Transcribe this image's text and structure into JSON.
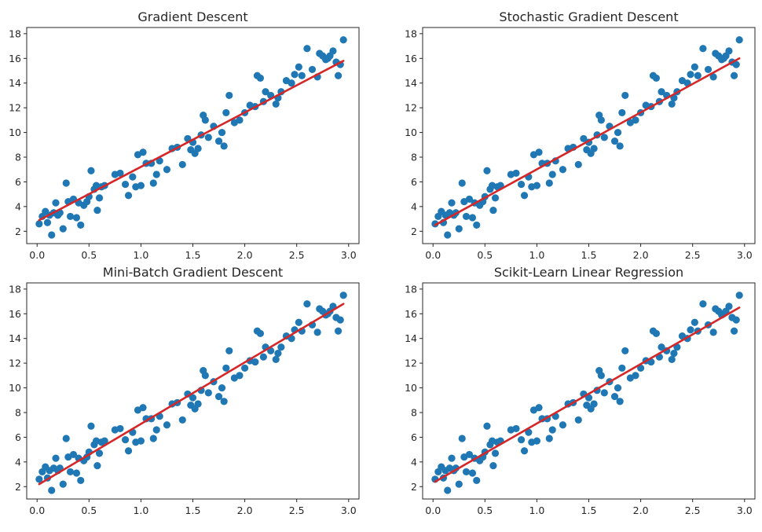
{
  "figure": {
    "layout": "2x2 grid of scatter plots with fitted regression lines"
  },
  "colors": {
    "points": "#1f77b4",
    "fit_line": "#d62728",
    "axes": "#262626",
    "background": "#ffffff"
  },
  "chart_data": [
    {
      "type": "scatter",
      "title": "Gradient Descent",
      "xlabel": "",
      "ylabel": "",
      "xlim": [
        -0.1,
        3.1
      ],
      "ylim": [
        1,
        18.5
      ],
      "xticks": [
        "0.0",
        "0.5",
        "1.0",
        "1.5",
        "2.0",
        "2.5",
        "3.0"
      ],
      "yticks": [
        "2",
        "4",
        "6",
        "8",
        "10",
        "12",
        "14",
        "16",
        "18"
      ],
      "grid": false,
      "fit_line": {
        "x": [
          0.02,
          2.95
        ],
        "y": [
          2.9,
          15.8
        ]
      },
      "series": [
        {
          "ref": "points"
        }
      ]
    },
    {
      "type": "scatter",
      "title": "Stochastic Gradient Descent",
      "xlabel": "",
      "ylabel": "",
      "xlim": [
        -0.1,
        3.1
      ],
      "ylim": [
        1,
        18.5
      ],
      "xticks": [
        "0.0",
        "0.5",
        "1.0",
        "1.5",
        "2.0",
        "2.5",
        "3.0"
      ],
      "yticks": [
        "2",
        "4",
        "6",
        "8",
        "10",
        "12",
        "14",
        "16",
        "18"
      ],
      "grid": false,
      "fit_line": {
        "x": [
          0.02,
          2.95
        ],
        "y": [
          2.5,
          16.0
        ]
      },
      "series": [
        {
          "ref": "points"
        }
      ]
    },
    {
      "type": "scatter",
      "title": "Mini-Batch Gradient Descent",
      "xlabel": "",
      "ylabel": "",
      "xlim": [
        -0.1,
        3.1
      ],
      "ylim": [
        1,
        18.5
      ],
      "xticks": [
        "0.0",
        "0.5",
        "1.0",
        "1.5",
        "2.0",
        "2.5",
        "3.0"
      ],
      "yticks": [
        "2",
        "4",
        "6",
        "8",
        "10",
        "12",
        "14",
        "16",
        "18"
      ],
      "grid": false,
      "fit_line": {
        "x": [
          0.02,
          2.95
        ],
        "y": [
          2.2,
          16.8
        ]
      },
      "series": [
        {
          "ref": "points"
        }
      ]
    },
    {
      "type": "scatter",
      "title": "Scikit-Learn Linear Regression",
      "xlabel": "",
      "ylabel": "",
      "xlim": [
        -0.1,
        3.1
      ],
      "ylim": [
        1,
        18.5
      ],
      "xticks": [
        "0.0",
        "0.5",
        "1.0",
        "1.5",
        "2.0",
        "2.5",
        "3.0"
      ],
      "yticks": [
        "2",
        "4",
        "6",
        "8",
        "10",
        "12",
        "14",
        "16",
        "18"
      ],
      "grid": false,
      "fit_line": {
        "x": [
          0.02,
          2.95
        ],
        "y": [
          2.4,
          16.5
        ]
      },
      "series": [
        {
          "ref": "points"
        }
      ]
    }
  ],
  "points": {
    "x": [
      0.02,
      0.05,
      0.08,
      0.1,
      0.12,
      0.14,
      0.16,
      0.18,
      0.2,
      0.22,
      0.25,
      0.28,
      0.3,
      0.32,
      0.35,
      0.38,
      0.4,
      0.42,
      0.45,
      0.48,
      0.5,
      0.52,
      0.55,
      0.57,
      0.58,
      0.6,
      0.62,
      0.65,
      0.75,
      0.8,
      0.85,
      0.88,
      0.92,
      0.95,
      0.97,
      1.0,
      1.02,
      1.05,
      1.1,
      1.12,
      1.15,
      1.18,
      1.25,
      1.3,
      1.35,
      1.4,
      1.45,
      1.48,
      1.5,
      1.52,
      1.55,
      1.58,
      1.6,
      1.62,
      1.65,
      1.7,
      1.75,
      1.78,
      1.8,
      1.82,
      1.85,
      1.9,
      1.95,
      2.0,
      2.05,
      2.1,
      2.12,
      2.15,
      2.18,
      2.2,
      2.25,
      2.3,
      2.32,
      2.35,
      2.4,
      2.45,
      2.48,
      2.52,
      2.55,
      2.6,
      2.65,
      2.7,
      2.72,
      2.75,
      2.78,
      2.8,
      2.82,
      2.85,
      2.88,
      2.9,
      2.92,
      2.95
    ],
    "y": [
      2.6,
      3.2,
      3.6,
      2.7,
      3.3,
      1.7,
      3.5,
      4.3,
      3.3,
      3.5,
      2.2,
      5.9,
      4.4,
      3.2,
      4.6,
      3.1,
      4.3,
      2.5,
      4.1,
      4.4,
      4.8,
      6.9,
      5.4,
      5.7,
      3.7,
      4.7,
      5.6,
      5.7,
      6.6,
      6.7,
      5.8,
      4.9,
      6.4,
      5.6,
      8.2,
      5.7,
      8.4,
      7.5,
      7.5,
      5.9,
      6.6,
      7.7,
      7.0,
      8.7,
      8.8,
      7.4,
      9.5,
      8.6,
      9.2,
      8.3,
      8.7,
      9.8,
      11.4,
      11.0,
      9.6,
      10.5,
      9.3,
      10.0,
      8.9,
      11.6,
      13.0,
      10.8,
      11.0,
      11.6,
      12.2,
      12.1,
      14.6,
      14.4,
      12.5,
      13.3,
      13.0,
      12.3,
      12.8,
      13.3,
      14.2,
      14.0,
      14.7,
      15.3,
      14.6,
      16.8,
      15.1,
      14.5,
      16.4,
      16.2,
      15.9,
      16.0,
      16.2,
      16.6,
      15.7,
      14.6,
      15.5,
      17.5
    ]
  }
}
